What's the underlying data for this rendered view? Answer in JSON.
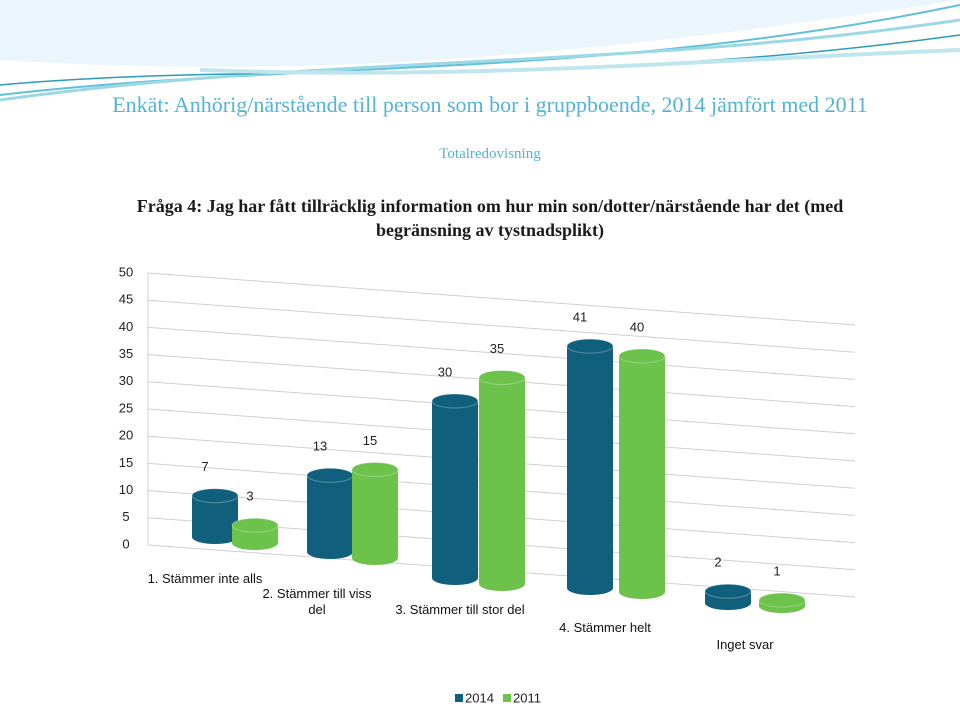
{
  "chart_data": {
    "type": "bar",
    "title": "Enkät: Anhörig/närstående till person som bor i gruppboende, 2014 jämfört med 2011",
    "subtitle": "Totalredovisning",
    "question": "Fråga 4: Jag har fått tillräcklig information om hur min son/dotter/närstående har det (med begränsning av tystnadsplikt)",
    "categories": [
      "1. Stämmer inte alls",
      "2. Stämmer till viss del",
      "3. Stämmer till stor del",
      "4. Stämmer helt",
      "Inget svar"
    ],
    "series": [
      {
        "name": "2014",
        "color": "#0f5f7d",
        "values": [
          7,
          13,
          30,
          41,
          2
        ]
      },
      {
        "name": "2011",
        "color": "#6cc24a",
        "values": [
          3,
          15,
          35,
          40,
          1
        ]
      }
    ],
    "ylim": [
      0,
      50
    ],
    "yticks": [
      0,
      5,
      10,
      15,
      20,
      25,
      30,
      35,
      40,
      45,
      50
    ],
    "grid": true,
    "legend": "bottom"
  }
}
